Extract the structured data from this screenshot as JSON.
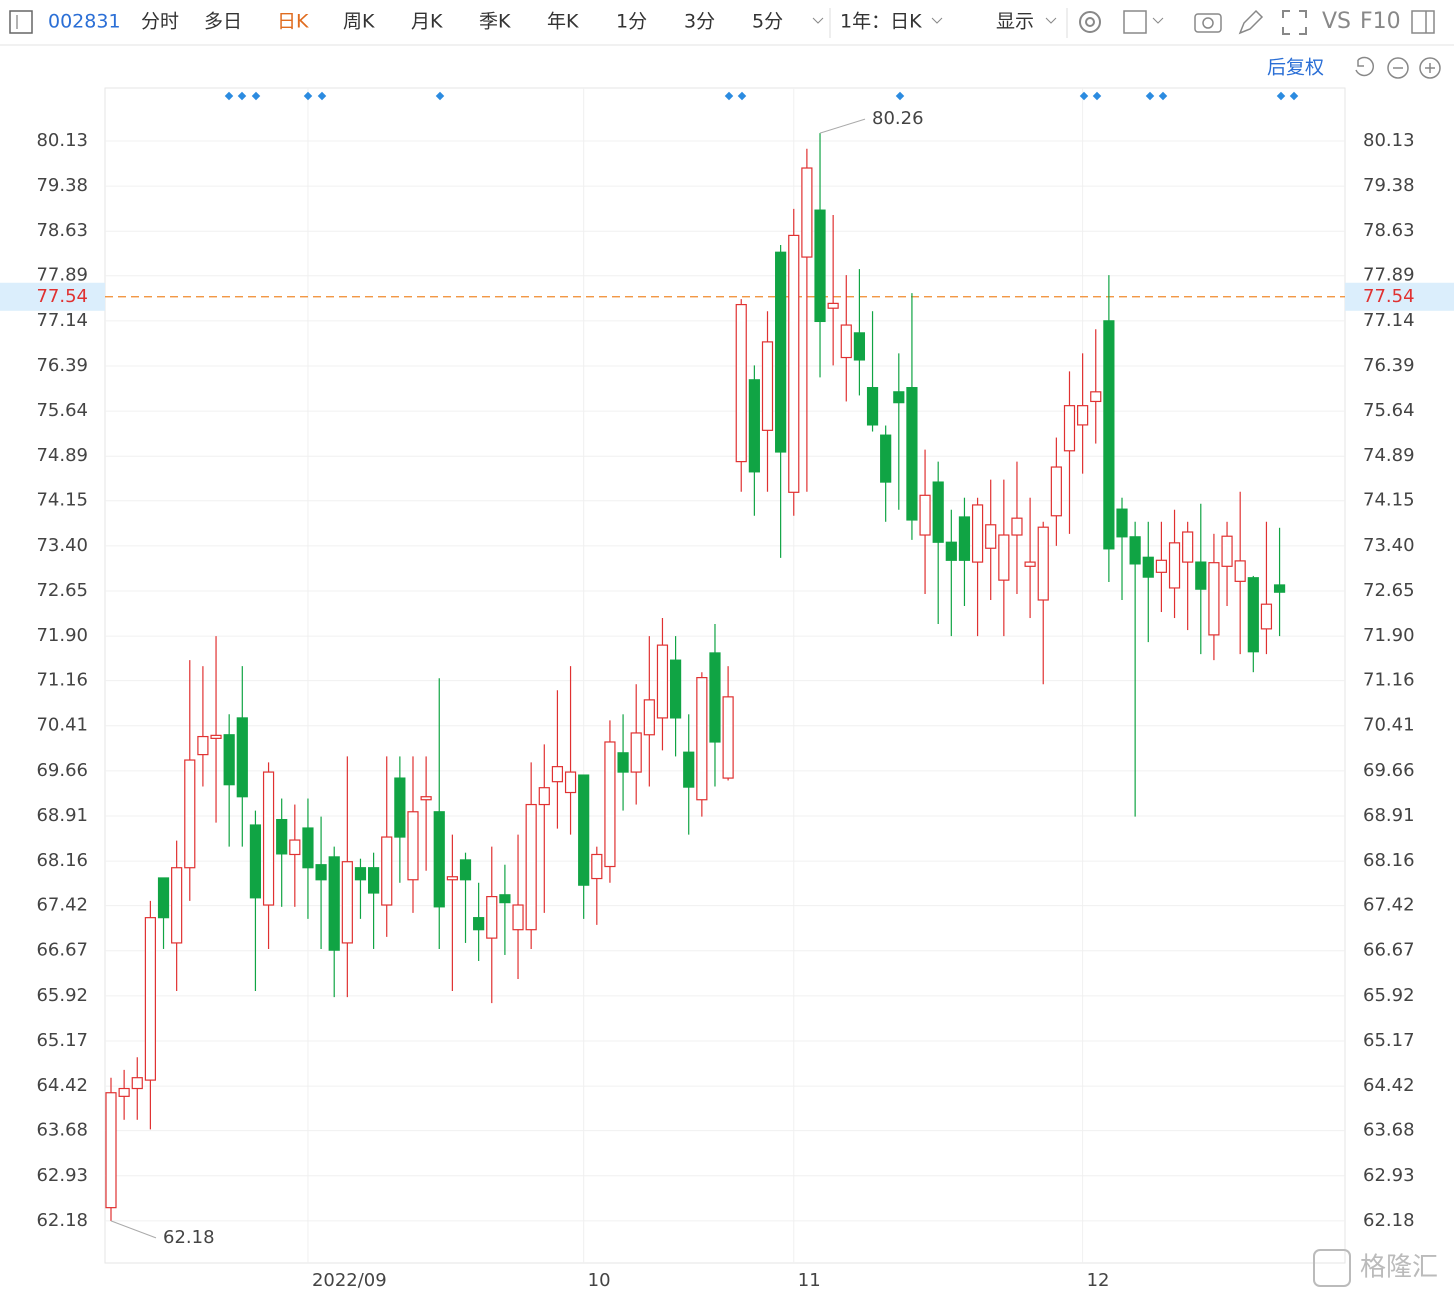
{
  "toolbar": {
    "code": "002831",
    "tabs": [
      "分时",
      "多日",
      "日K",
      "周K",
      "月K",
      "季K",
      "年K",
      "1分",
      "3分",
      "5分"
    ],
    "period": "1年：日K",
    "display": "显示",
    "vs": "VS",
    "f10": "F10",
    "adjust": "后复权"
  },
  "watermark": "格隆汇",
  "chart_data": {
    "type": "candlestick",
    "categories": [
      null,
      null,
      null,
      null,
      null,
      null,
      null,
      null,
      null,
      null,
      null,
      null,
      null,
      null,
      null,
      "2022/09",
      null,
      null,
      null,
      null,
      null,
      null,
      null,
      null,
      null,
      null,
      null,
      null,
      null,
      null,
      null,
      null,
      null,
      null,
      null,
      null,
      "10",
      null,
      null,
      null,
      null,
      null,
      null,
      null,
      null,
      null,
      null,
      null,
      null,
      null,
      null,
      null,
      "11",
      null,
      null,
      null,
      null,
      null,
      null,
      null,
      null,
      null,
      null,
      null,
      null,
      null,
      null,
      null,
      null,
      null,
      null,
      null,
      null,
      null,
      "12",
      null,
      null,
      null,
      null,
      null,
      null,
      null,
      null,
      null,
      null,
      null,
      null,
      null,
      null,
      null
    ],
    "open": [
      62.4,
      64.25,
      64.38,
      64.52,
      67.88,
      66.8,
      68.05,
      69.93,
      70.2,
      70.26,
      70.54,
      68.76,
      67.43,
      68.85,
      68.27,
      68.71,
      68.1,
      68.23,
      66.8,
      68.05,
      68.05,
      67.43,
      69.54,
      67.85,
      69.18,
      68.98,
      67.85,
      68.18,
      67.22,
      66.88,
      67.6,
      67.02,
      67.02,
      69.1,
      69.48,
      69.3,
      69.59,
      67.87,
      68.07,
      69.96,
      69.64,
      70.26,
      70.54,
      71.5,
      69.97,
      69.18,
      71.62,
      69.54,
      74.8,
      76.16,
      75.32,
      78.28,
      74.29,
      78.2,
      78.98,
      77.35,
      76.53,
      76.94,
      76.03,
      75.24,
      75.96,
      76.03,
      73.58,
      74.46,
      73.46,
      73.88,
      73.13,
      73.36,
      72.83,
      73.58,
      73.06,
      72.5,
      73.9,
      74.98,
      75.41,
      75.8,
      77.14,
      74.01,
      73.55,
      73.21,
      72.96,
      72.7,
      73.13,
      73.13,
      71.92,
      73.06,
      72.81,
      72.87,
      72.02,
      72.75
    ],
    "high": [
      64.56,
      64.69,
      64.9,
      67.5,
      67.88,
      68.5,
      71.5,
      71.4,
      71.9,
      70.6,
      71.4,
      69.0,
      69.8,
      69.2,
      69.1,
      69.2,
      68.9,
      68.4,
      69.9,
      68.2,
      68.3,
      69.9,
      69.9,
      69.9,
      69.9,
      71.2,
      68.6,
      68.3,
      67.8,
      68.4,
      68.1,
      68.6,
      69.8,
      70.1,
      71.0,
      71.4,
      69.6,
      68.4,
      70.5,
      70.6,
      71.1,
      71.9,
      72.2,
      71.9,
      70.6,
      71.3,
      72.1,
      71.4,
      77.5,
      76.4,
      77.3,
      78.4,
      79.0,
      80.0,
      80.26,
      78.9,
      77.9,
      78.0,
      77.3,
      75.4,
      76.6,
      77.6,
      75.0,
      74.8,
      74.0,
      74.2,
      74.2,
      74.5,
      74.5,
      74.8,
      74.2,
      73.8,
      75.2,
      76.3,
      76.6,
      77.0,
      77.9,
      74.2,
      73.8,
      73.8,
      73.8,
      74.0,
      73.8,
      74.1,
      73.6,
      73.8,
      74.3,
      72.9,
      73.8,
      73.7
    ],
    "low": [
      62.18,
      63.86,
      63.86,
      63.7,
      66.7,
      66.0,
      67.5,
      69.4,
      68.8,
      68.4,
      68.4,
      66.0,
      66.7,
      67.4,
      67.4,
      67.2,
      66.7,
      65.9,
      65.9,
      67.2,
      66.7,
      66.9,
      67.8,
      67.3,
      68.0,
      66.7,
      66.0,
      66.8,
      66.5,
      65.8,
      66.6,
      66.2,
      66.7,
      67.3,
      68.7,
      68.6,
      67.2,
      67.1,
      67.8,
      69.0,
      69.1,
      69.4,
      70.0,
      69.9,
      68.6,
      68.9,
      69.4,
      69.5,
      74.3,
      73.9,
      74.3,
      73.2,
      73.9,
      74.3,
      76.2,
      76.4,
      75.8,
      75.9,
      75.3,
      73.8,
      74.0,
      73.5,
      72.6,
      72.1,
      71.9,
      72.4,
      71.9,
      72.5,
      71.9,
      72.6,
      72.2,
      71.1,
      73.4,
      73.6,
      74.6,
      75.1,
      72.8,
      72.5,
      68.9,
      71.8,
      72.3,
      72.2,
      72.0,
      71.6,
      71.5,
      72.4,
      71.6,
      71.3,
      71.6,
      71.9
    ],
    "close": [
      64.31,
      64.38,
      64.56,
      67.22,
      67.22,
      68.05,
      69.84,
      70.23,
      70.25,
      69.43,
      69.23,
      67.55,
      69.64,
      68.28,
      68.51,
      68.05,
      67.85,
      66.68,
      68.15,
      67.85,
      67.63,
      68.56,
      68.56,
      68.98,
      69.23,
      67.4,
      67.9,
      67.85,
      67.02,
      67.57,
      67.47,
      67.43,
      69.1,
      69.38,
      69.73,
      69.64,
      67.76,
      68.27,
      70.14,
      69.64,
      70.29,
      70.84,
      71.75,
      70.54,
      69.39,
      71.21,
      70.14,
      70.89,
      77.41,
      74.63,
      76.79,
      74.96,
      78.56,
      79.68,
      77.13,
      77.43,
      77.07,
      76.49,
      75.41,
      74.46,
      75.78,
      73.83,
      74.24,
      73.46,
      73.16,
      73.16,
      74.08,
      73.75,
      73.58,
      73.86,
      73.13,
      73.71,
      74.71,
      75.73,
      75.73,
      75.96,
      73.35,
      73.55,
      73.1,
      72.88,
      73.16,
      73.45,
      73.63,
      72.68,
      73.12,
      73.56,
      73.15,
      71.64,
      72.43,
      72.63
    ],
    "up_color": "#e03131",
    "down_color": "#10a444",
    "reference_price": 77.54,
    "ylim": [
      61.48,
      81.01
    ],
    "yticks": [
      80.13,
      79.38,
      78.63,
      77.89,
      77.14,
      76.39,
      75.64,
      74.89,
      74.15,
      {
        "value": 73.4,
        "label": "73.40"
      },
      72.65,
      {
        "value": 71.9,
        "label": "71.90"
      },
      71.16,
      70.41,
      69.66,
      68.91,
      68.16,
      67.42,
      66.67,
      65.92,
      65.17,
      64.42,
      63.68,
      62.93,
      62.18
    ],
    "grid": true
  }
}
